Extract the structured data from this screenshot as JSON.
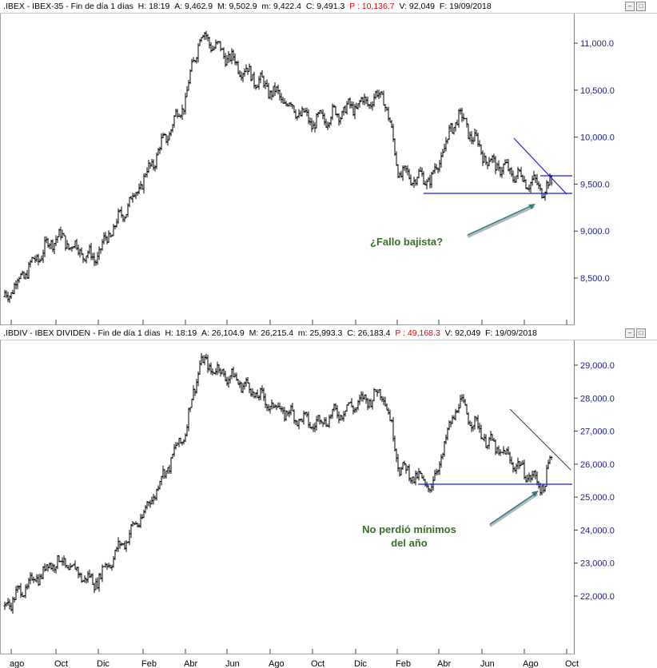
{
  "panels": [
    {
      "header": {
        "symbol": ".IBEX - IBEX-35 - Fin de día 1 días",
        "h": "H: 18:19",
        "a": "A: 9,462.9",
        "m_max": "M: 9,502.9",
        "m_min": "m: 9,422.4",
        "c": "C: 9,491.3",
        "p": "P : 10,136.7",
        "v": "V: 92,049",
        "f": "F: 19/09/2018"
      },
      "annotation": "¿Fallo bajista?"
    },
    {
      "header": {
        "symbol": ".IBDIV - IBEX DIVIDEN - Fin de día 1 días",
        "h": "H: 18:19",
        "a": "A: 26,104.9",
        "m_max": "M: 26,215.4",
        "m_min": "m: 25,993.3",
        "c": "C: 26,183.4",
        "p": "P : 49,168.3",
        "v": "V: 92,049",
        "f": "F: 19/09/2018"
      },
      "annotation_line1": "No perdió mínimos",
      "annotation_line2": "del año"
    }
  ],
  "chart_data": [
    {
      "type": "line",
      "style": "ohlc-bars",
      "title": ".IBEX - IBEX-35",
      "x_tick_labels": [
        "ago",
        "Oct",
        "Dic",
        "Feb",
        "Abr",
        "Jun",
        "Ago",
        "Oct",
        "Dic",
        "Feb",
        "Abr",
        "Jun",
        "Ago",
        "Oct"
      ],
      "y_tick_labels": [
        "8,500.0",
        "9,000.0",
        "9,500.0",
        "10,000.0",
        "10,500.0",
        "11,000.0"
      ],
      "ylim": [
        8200,
        11300
      ],
      "series": [
        {
          "x": [
            "Ago 2016",
            "Oct 2016",
            "Dic 2016",
            "Feb 2017",
            "Abr 2017",
            "May 2017",
            "Jun 2017",
            "Ago 2017",
            "Oct 2017",
            "Dic 2017",
            "Feb 2018",
            "Abr 2018",
            "May 2018",
            "Jun 2018",
            "Ago 2018",
            "Sep 2018"
          ],
          "y": [
            8300,
            8950,
            8700,
            9550,
            10400,
            11100,
            10750,
            10500,
            10150,
            10450,
            9600,
            9550,
            10250,
            9750,
            9450,
            9491
          ]
        }
      ],
      "annotations": [
        "¿Fallo bajista?"
      ],
      "grid": false,
      "legend": "none"
    },
    {
      "type": "line",
      "style": "ohlc-bars",
      "title": ".IBDIV - IBEX DIVIDEN",
      "x_tick_labels": [
        "ago",
        "Oct",
        "Dic",
        "Feb",
        "Abr",
        "Jun",
        "Ago",
        "Oct",
        "Dic",
        "Feb",
        "Abr",
        "Jun",
        "Ago",
        "Oct"
      ],
      "y_tick_labels": [
        "22,000.0",
        "23,000.0",
        "24,000.0",
        "25,000.0",
        "26,000.0",
        "27,000.0",
        "28,000.0",
        "29,000.0"
      ],
      "ylim": [
        21300,
        29900
      ],
      "series": [
        {
          "x": [
            "Ago 2016",
            "Oct 2016",
            "Dic 2016",
            "Feb 2017",
            "Abr 2017",
            "May 2017",
            "Jun 2017",
            "Ago 2017",
            "Oct 2017",
            "Dic 2017",
            "Feb 2018",
            "Abr 2018",
            "May 2018",
            "Jun 2018",
            "Ago 2018",
            "Sep 2018"
          ],
          "y": [
            21700,
            23100,
            22400,
            24500,
            27000,
            29100,
            28500,
            27800,
            27200,
            28200,
            25900,
            25300,
            27900,
            26700,
            25300,
            26183
          ]
        }
      ],
      "annotations": [
        "No perdió mínimos del año"
      ],
      "grid": false,
      "legend": "none"
    }
  ]
}
